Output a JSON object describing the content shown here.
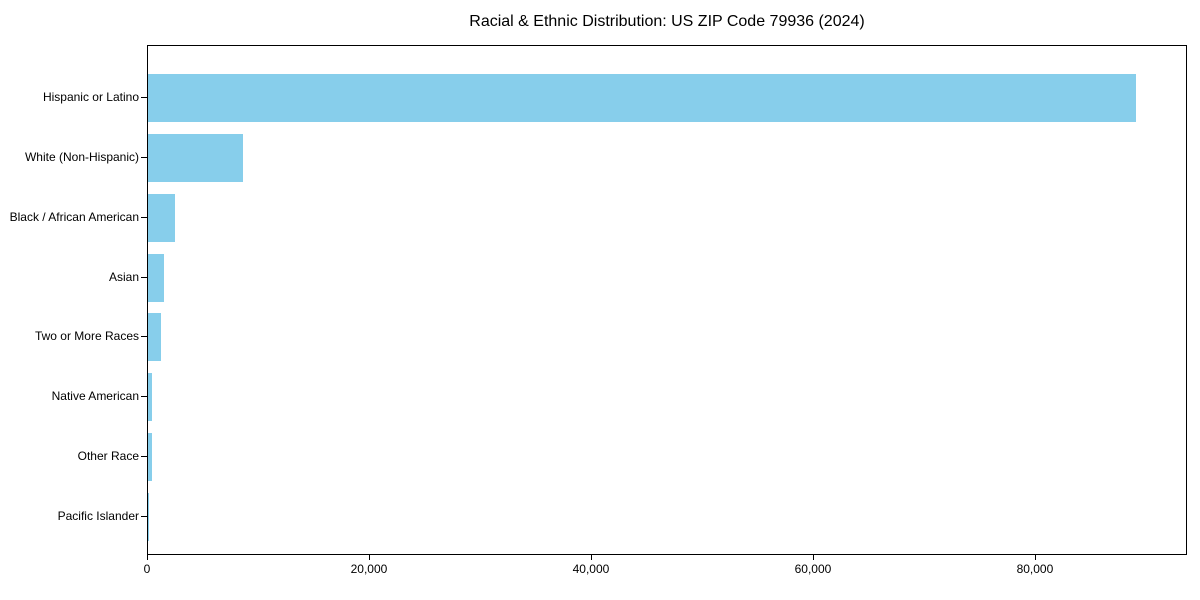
{
  "title": "Racial & Ethnic Distribution: US ZIP Code 79936 (2024)",
  "colors": {
    "bar": "#87CEEB",
    "background": "#ffffff",
    "text": "#000000",
    "axis": "#000000"
  },
  "chart_data": {
    "type": "bar",
    "orientation": "horizontal",
    "title": "Racial & Ethnic Distribution: US ZIP Code 79936 (2024)",
    "xlabel": "",
    "ylabel": "",
    "grid": false,
    "legend": null,
    "bar_color": "#87CEEB",
    "categories": [
      "Hispanic or Latino",
      "White (Non-Hispanic)",
      "Black / African American",
      "Asian",
      "Two or More Races",
      "Native American",
      "Other Race",
      "Pacific Islander"
    ],
    "values": [
      89200,
      8570,
      2440,
      1420,
      1170,
      350,
      320,
      60
    ],
    "xlim": [
      0,
      93700
    ],
    "x_ticks": {
      "values": [
        0,
        20000,
        40000,
        60000,
        80000
      ],
      "labels": [
        "0",
        "20,000",
        "40,000",
        "60,000",
        "80,000"
      ]
    }
  }
}
